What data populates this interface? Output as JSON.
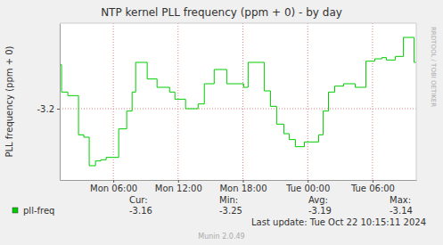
{
  "chart_data": {
    "type": "line",
    "title": "NTP kernel PLL frequency (ppm + 0) - by day",
    "y_label": "PLL frequency (ppm + 0)",
    "watermark": "RRDTOOL / TOBI OETIKER",
    "last_update": "Last update: Tue Oct 22 10:15:11 2024",
    "footer": "Munin 2.0.49",
    "x": [
      1.04,
      1.21,
      1.79,
      2.78,
      3.27,
      3.77,
      4.35,
      4.84,
      5.34,
      6.5,
      7.24,
      7.74,
      8.07,
      9.14,
      10.05,
      11.21,
      11.7,
      12.69,
      13.85,
      14.43,
      15.34,
      16.5,
      18.07,
      18.48,
      19.97,
      20.55,
      21.12,
      21.79,
      22.28,
      22.86,
      23.69,
      25.01,
      25.42,
      25.92,
      26.5,
      27.32,
      28.4,
      29.39,
      30.21,
      30.88,
      31.29,
      32.12,
      32.86,
      33.85,
      34.05
    ],
    "series": [
      {
        "name": "pll-freq",
        "color": "#00cc00",
        "line_style": "step",
        "values": [
          -3.163,
          -3.186,
          -3.189,
          -3.222,
          -3.224,
          -3.248,
          -3.244,
          -3.243,
          -3.241,
          -3.217,
          -3.202,
          -3.186,
          -3.161,
          -3.175,
          -3.182,
          -3.186,
          -3.192,
          -3.2,
          -3.196,
          -3.179,
          -3.167,
          -3.179,
          -3.182,
          -3.161,
          -3.185,
          -3.198,
          -3.213,
          -3.221,
          -3.226,
          -3.232,
          -3.228,
          -3.222,
          -3.202,
          -3.186,
          -3.181,
          -3.179,
          -3.182,
          -3.16,
          -3.158,
          -3.157,
          -3.159,
          -3.156,
          -3.14,
          -3.161,
          -3.161
        ]
      }
    ],
    "xlim": [
      1.04,
      34.05
    ],
    "xticks": [
      {
        "value": 6,
        "label": "Mon 06:00"
      },
      {
        "value": 12,
        "label": "Mon 12:00"
      },
      {
        "value": 18,
        "label": "Mon 18:00"
      },
      {
        "value": 24,
        "label": "Tue 00:00"
      },
      {
        "value": 30,
        "label": "Tue 06:00"
      }
    ],
    "ylim": [
      -3.26,
      -3.128
    ],
    "yticks": [
      -3.2
    ],
    "grid": true,
    "legend": "bottom",
    "legend_stats": {
      "labels": [
        "Cur:",
        "Min:",
        "Avg:",
        "Max:"
      ],
      "values": [
        -3.16,
        -3.25,
        -3.19,
        -3.14
      ]
    }
  }
}
